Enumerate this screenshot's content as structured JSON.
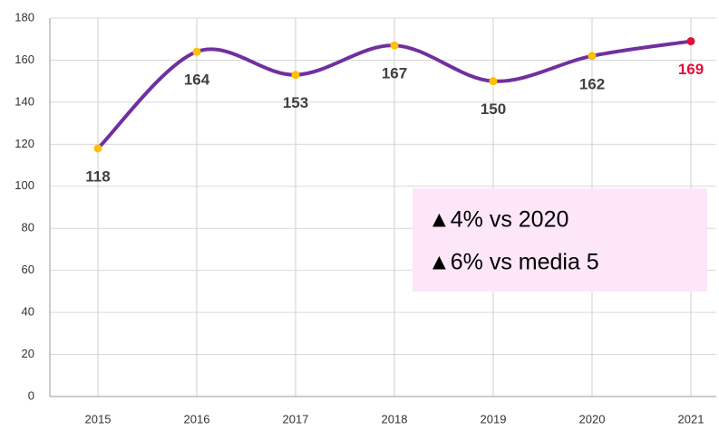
{
  "chart_data": {
    "type": "line",
    "categories": [
      "2015",
      "2016",
      "2017",
      "2018",
      "2019",
      "2020",
      "2021"
    ],
    "series": [
      {
        "values": [
          118,
          164,
          153,
          167,
          150,
          162,
          169
        ],
        "color": "#7030a0"
      }
    ],
    "marker_color": "#ffc000",
    "highlight_color": "#e0103a",
    "label_color": "#404040",
    "ylim": [
      0,
      180
    ],
    "yticks": [
      0,
      20,
      40,
      60,
      80,
      100,
      120,
      140,
      160,
      180
    ],
    "grid": true,
    "annotations": [
      "▲4% vs 2020",
      "▲6% vs media 5"
    ],
    "annotation_background": "#fce6f8"
  }
}
